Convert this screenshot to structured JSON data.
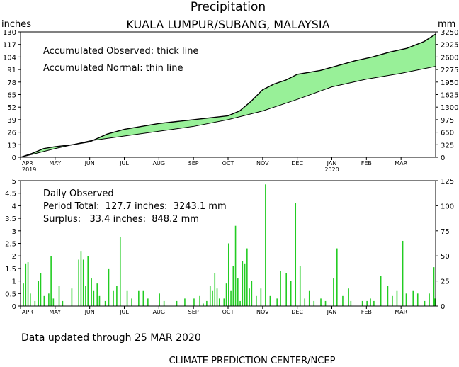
{
  "title": "Precipitation",
  "subtitle": "KUALA LUMPUR/SUBANG, MALAYSIA",
  "unit_left": "inches",
  "unit_right": "mm",
  "footer_updated": "Data updated through 25 MAR 2020",
  "footer_credit": "CLIMATE PREDICTION CENTER/NCEP",
  "colors": {
    "fill": "#98f098",
    "bar": "#22cc22",
    "line": "#000000"
  },
  "chart_data": [
    {
      "type": "area",
      "notes": [
        "Accumulated Observed: thick line",
        "Accumulated Normal: thin line"
      ],
      "months": [
        "APR",
        "MAY",
        "JUN",
        "JUL",
        "AUG",
        "SEP",
        "OCT",
        "NOV",
        "DEC",
        "JAN",
        "FEB",
        "MAR"
      ],
      "year_labels": [
        {
          "after": "APR",
          "text": "2019"
        },
        {
          "after": "JAN",
          "text": "2020"
        }
      ],
      "y_ticks_left": [
        "0",
        "13",
        "26",
        "39",
        "52",
        "65",
        "78",
        "91",
        "104",
        "117",
        "130"
      ],
      "y_ticks_right": [
        "0",
        "325",
        "650",
        "975",
        "1300",
        "1625",
        "1950",
        "2275",
        "2600",
        "2925",
        "3250"
      ],
      "ylim": [
        0,
        130
      ],
      "x_days": 360,
      "series": [
        {
          "name": "Accumulated Observed",
          "points": [
            [
              0,
              0
            ],
            [
              10,
              4
            ],
            [
              20,
              9
            ],
            [
              30,
              11
            ],
            [
              45,
              13
            ],
            [
              60,
              16
            ],
            [
              75,
              24
            ],
            [
              90,
              29
            ],
            [
              105,
              32
            ],
            [
              120,
              35
            ],
            [
              135,
              37
            ],
            [
              150,
              39
            ],
            [
              165,
              41
            ],
            [
              180,
              43
            ],
            [
              190,
              48
            ],
            [
              200,
              58
            ],
            [
              210,
              70
            ],
            [
              220,
              76
            ],
            [
              230,
              80
            ],
            [
              240,
              86
            ],
            [
              250,
              88
            ],
            [
              260,
              90
            ],
            [
              275,
              95
            ],
            [
              290,
              100
            ],
            [
              305,
              104
            ],
            [
              320,
              109
            ],
            [
              335,
              113
            ],
            [
              350,
              120
            ],
            [
              360,
              127.7
            ]
          ]
        },
        {
          "name": "Accumulated Normal",
          "points": [
            [
              0,
              0
            ],
            [
              30,
              9
            ],
            [
              60,
              17
            ],
            [
              90,
              22
            ],
            [
              120,
              27
            ],
            [
              150,
              32
            ],
            [
              180,
              39
            ],
            [
              210,
              48
            ],
            [
              240,
              60
            ],
            [
              270,
              73
            ],
            [
              300,
              81
            ],
            [
              330,
              87
            ],
            [
              360,
              94.3
            ]
          ]
        }
      ]
    },
    {
      "type": "bar",
      "notes": [
        "Daily Observed",
        "Period Total:  127.7 inches:  3243.1 mm",
        "Surplus:   33.4 inches:  848.2 mm"
      ],
      "months": [
        "APR",
        "MAY",
        "JUN",
        "JUL",
        "AUG",
        "SEP",
        "OCT",
        "NOV",
        "DEC",
        "JAN",
        "FEB",
        "MAR"
      ],
      "y_ticks_left": [
        "0",
        "0.5",
        "1",
        "1.5",
        "2",
        "2.5",
        "3",
        "3.5",
        "4",
        "4.5",
        "5"
      ],
      "y_ticks_right": [
        "0",
        "25",
        "50",
        "75",
        "100",
        "125"
      ],
      "ylim": [
        0,
        5
      ],
      "x_days": 360,
      "bars": [
        [
          2,
          0.9
        ],
        [
          4,
          1.7
        ],
        [
          6,
          1.75
        ],
        [
          8,
          0.5
        ],
        [
          12,
          0.2
        ],
        [
          15,
          1.0
        ],
        [
          17,
          1.3
        ],
        [
          20,
          0.4
        ],
        [
          24,
          0.5
        ],
        [
          26,
          2.0
        ],
        [
          28,
          0.3
        ],
        [
          33,
          0.8
        ],
        [
          36,
          0.2
        ],
        [
          44,
          0.7
        ],
        [
          50,
          1.85
        ],
        [
          52,
          2.2
        ],
        [
          54,
          1.85
        ],
        [
          56,
          0.8
        ],
        [
          58,
          2.0
        ],
        [
          61,
          1.1
        ],
        [
          63,
          0.6
        ],
        [
          66,
          0.9
        ],
        [
          68,
          0.4
        ],
        [
          73,
          0.2
        ],
        [
          76,
          1.5
        ],
        [
          80,
          0.6
        ],
        [
          83,
          0.8
        ],
        [
          86,
          2.75
        ],
        [
          92,
          0.6
        ],
        [
          96,
          0.3
        ],
        [
          102,
          0.6
        ],
        [
          106,
          0.6
        ],
        [
          110,
          0.3
        ],
        [
          120,
          0.5
        ],
        [
          124,
          0.2
        ],
        [
          135,
          0.2
        ],
        [
          142,
          0.3
        ],
        [
          150,
          0.3
        ],
        [
          155,
          0.4
        ],
        [
          158,
          0.1
        ],
        [
          161,
          0.2
        ],
        [
          164,
          0.8
        ],
        [
          166,
          0.6
        ],
        [
          168,
          1.3
        ],
        [
          170,
          0.7
        ],
        [
          172,
          0.3
        ],
        [
          176,
          0.3
        ],
        [
          178,
          0.9
        ],
        [
          180,
          2.5
        ],
        [
          182,
          0.6
        ],
        [
          184,
          1.6
        ],
        [
          186,
          3.2
        ],
        [
          188,
          1.1
        ],
        [
          190,
          0.2
        ],
        [
          192,
          1.8
        ],
        [
          194,
          1.7
        ],
        [
          196,
          2.3
        ],
        [
          198,
          0.7
        ],
        [
          200,
          1.0
        ],
        [
          204,
          0.4
        ],
        [
          208,
          0.7
        ],
        [
          212,
          4.85
        ],
        [
          216,
          0.4
        ],
        [
          222,
          0.3
        ],
        [
          225,
          1.4
        ],
        [
          230,
          1.3
        ],
        [
          234,
          1.0
        ],
        [
          238,
          4.1
        ],
        [
          242,
          1.6
        ],
        [
          246,
          0.3
        ],
        [
          250,
          0.6
        ],
        [
          254,
          0.2
        ],
        [
          260,
          0.3
        ],
        [
          264,
          0.2
        ],
        [
          271,
          1.1
        ],
        [
          274,
          2.3
        ],
        [
          279,
          0.4
        ],
        [
          284,
          0.7
        ],
        [
          286,
          0.2
        ],
        [
          296,
          0.2
        ],
        [
          300,
          0.2
        ],
        [
          303,
          0.3
        ],
        [
          306,
          0.2
        ],
        [
          312,
          1.2
        ],
        [
          318,
          0.8
        ],
        [
          322,
          0.4
        ],
        [
          326,
          0.6
        ],
        [
          331,
          2.6
        ],
        [
          334,
          0.5
        ],
        [
          340,
          0.6
        ],
        [
          344,
          0.5
        ],
        [
          350,
          0.2
        ],
        [
          354,
          0.5
        ],
        [
          358,
          1.55
        ],
        [
          360,
          0.3
        ]
      ]
    }
  ]
}
